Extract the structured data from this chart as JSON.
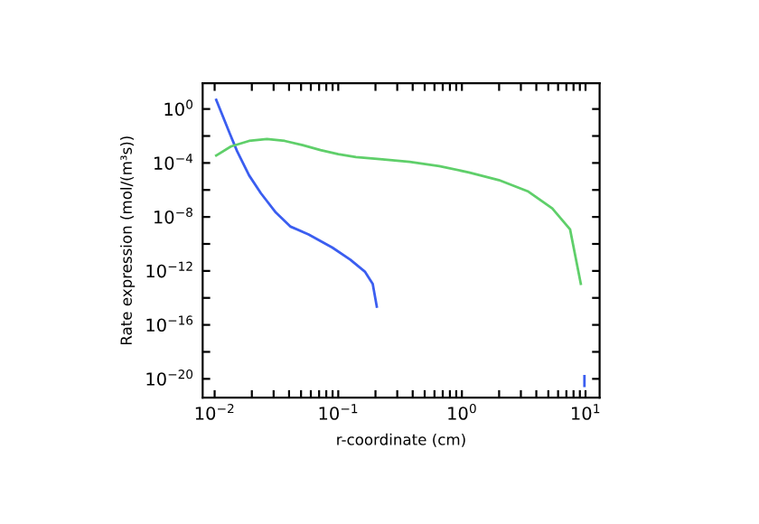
{
  "chart_data": {
    "type": "line",
    "xlabel": "r-coordinate (cm)",
    "ylabel": "Rate expression (mol/(m³s))",
    "log": "xy",
    "grid": false,
    "legend": false,
    "marker": "none",
    "line_style": "solid",
    "xlim": [
      0.008,
      13
    ],
    "ylim": [
      4e-22,
      80
    ],
    "xticks": [
      {
        "value": 0.01,
        "label": "10$^{−2}$"
      },
      {
        "value": 0.02,
        "label": null
      },
      {
        "value": 0.03,
        "label": null
      },
      {
        "value": 0.04,
        "label": null
      },
      {
        "value": 0.05,
        "label": null
      },
      {
        "value": 0.06,
        "label": null
      },
      {
        "value": 0.07,
        "label": null
      },
      {
        "value": 0.08,
        "label": null
      },
      {
        "value": 0.09,
        "label": null
      },
      {
        "value": 0.1,
        "label": "10$^{−1}$"
      },
      {
        "value": 0.2,
        "label": null
      },
      {
        "value": 0.3,
        "label": null
      },
      {
        "value": 0.4,
        "label": null
      },
      {
        "value": 0.5,
        "label": null
      },
      {
        "value": 0.6,
        "label": null
      },
      {
        "value": 0.7,
        "label": null
      },
      {
        "value": 0.8,
        "label": null
      },
      {
        "value": 0.9,
        "label": null
      },
      {
        "value": 1,
        "label": "10$^{0}$"
      },
      {
        "value": 2,
        "label": null
      },
      {
        "value": 3,
        "label": null
      },
      {
        "value": 4,
        "label": null
      },
      {
        "value": 5,
        "label": null
      },
      {
        "value": 6,
        "label": null
      },
      {
        "value": 7,
        "label": null
      },
      {
        "value": 8,
        "label": null
      },
      {
        "value": 9,
        "label": null
      },
      {
        "value": 10,
        "label": "10$^{1}$"
      }
    ],
    "yticks": [
      {
        "value": 1e-20,
        "label": "10$^{−20}$"
      },
      {
        "value": 1e-18,
        "label": null
      },
      {
        "value": 1e-16,
        "label": "10$^{−16}$"
      },
      {
        "value": 1e-14,
        "label": null
      },
      {
        "value": 1e-12,
        "label": "10$^{−12}$"
      },
      {
        "value": 1e-10,
        "label": null
      },
      {
        "value": 1e-08,
        "label": "10$^{−8}$"
      },
      {
        "value": 1e-06,
        "label": null
      },
      {
        "value": 0.0001,
        "label": "10$^{−4}$"
      },
      {
        "value": 0.01,
        "label": null
      },
      {
        "value": 1,
        "label": "10$^{0}$"
      }
    ],
    "series": [
      {
        "color": "#3b5ef0",
        "x": [
          0.0103,
          0.0129,
          0.0152,
          0.019,
          0.0237,
          0.0313,
          0.0412,
          0.0575,
          0.0895,
          0.125,
          0.164,
          0.19,
          0.205
        ],
        "values": [
          4.7,
          0.028,
          0.00074,
          1.2e-05,
          5.6e-07,
          2.1e-08,
          1.9e-09,
          5.1e-10,
          5.4e-11,
          6.9e-12,
          8.9e-13,
          1.1e-13,
          2.3e-15
        ]
      },
      {
        "color": "#5fcf6a",
        "x": [
          0.0103,
          0.0136,
          0.019,
          0.0265,
          0.0369,
          0.0515,
          0.0718,
          0.1,
          0.139,
          0.217,
          0.378,
          0.656,
          1.14,
          1.99,
          3.45,
          5.38,
          7.5,
          9.16
        ],
        "values": [
          0.00036,
          0.0017,
          0.0043,
          0.0059,
          0.0043,
          0.0021,
          0.00091,
          0.00045,
          0.00027,
          0.00019,
          0.00012,
          5.8e-05,
          2e-05,
          5.4e-06,
          7.6e-07,
          4.3e-08,
          1.2e-09,
          1.1e-13
        ]
      },
      {
        "color": "#3b5ef0",
        "x": [
          9.8,
          9.8
        ],
        "values": [
          1.6e-20,
          3e-21
        ]
      }
    ]
  }
}
